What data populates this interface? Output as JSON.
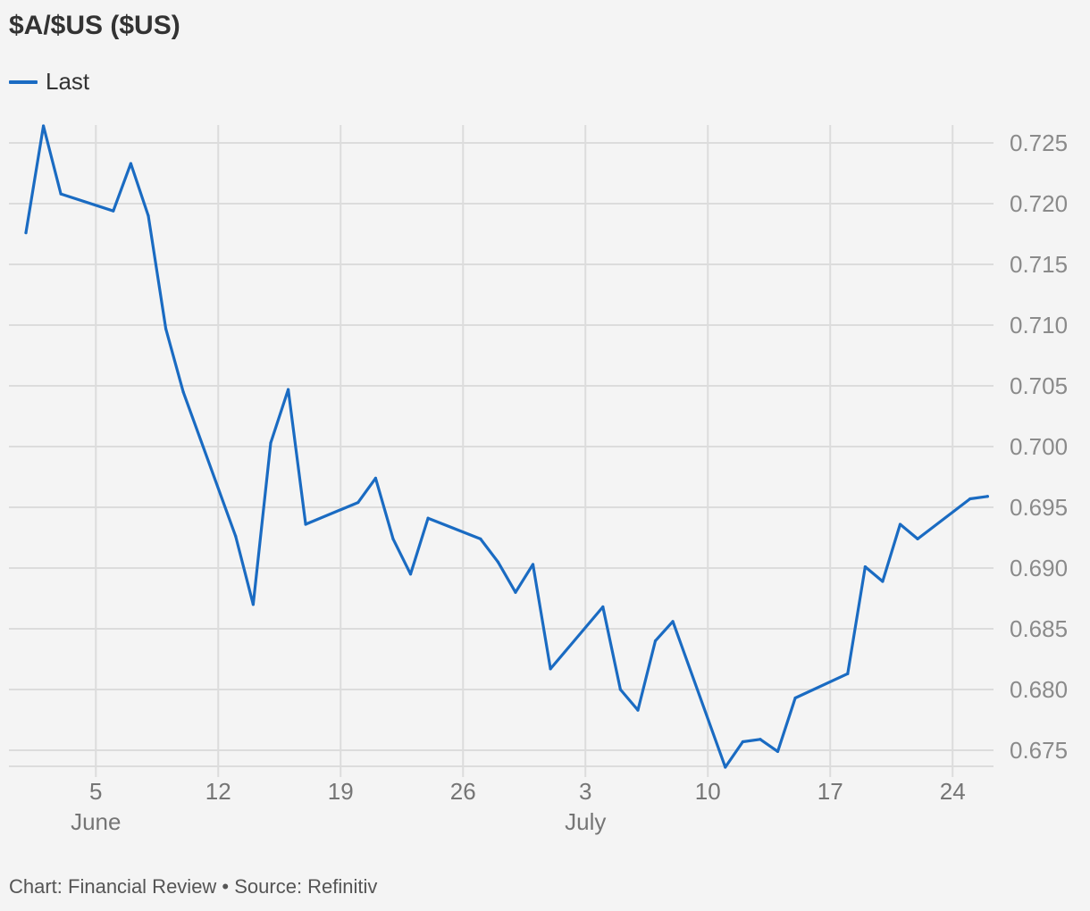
{
  "title": "$A/$US ($US)",
  "legend": {
    "label": "Last",
    "color": "#1a6bc2"
  },
  "credit": "Chart: Financial Review • Source: Refinitiv",
  "chart_data": {
    "type": "line",
    "title": "$A/$US ($US)",
    "ylim": [
      0.673,
      0.726
    ],
    "grid": true,
    "legend_position": "top-left",
    "y_ticks": [
      "0.725",
      "0.720",
      "0.715",
      "0.710",
      "0.705",
      "0.700",
      "0.695",
      "0.690",
      "0.685",
      "0.680",
      "0.675"
    ],
    "x_ticks": [
      {
        "label": "5",
        "sub": "June",
        "day": 4
      },
      {
        "label": "12",
        "sub": "",
        "day": 11
      },
      {
        "label": "19",
        "sub": "",
        "day": 18
      },
      {
        "label": "26",
        "sub": "",
        "day": 25
      },
      {
        "label": "3",
        "sub": "July",
        "day": 32
      },
      {
        "label": "10",
        "sub": "",
        "day": 39
      },
      {
        "label": "17",
        "sub": "",
        "day": 46
      },
      {
        "label": "24",
        "sub": "",
        "day": 53
      }
    ],
    "series": [
      {
        "name": "Last",
        "color": "#1a6bc2",
        "points": [
          [
            0,
            0.7176
          ],
          [
            1,
            0.7264
          ],
          [
            2,
            0.7208
          ],
          [
            5,
            0.7194
          ],
          [
            6,
            0.7233
          ],
          [
            7,
            0.719
          ],
          [
            8,
            0.7097
          ],
          [
            9,
            0.7045
          ],
          [
            12,
            0.6926
          ],
          [
            13,
            0.687
          ],
          [
            14,
            0.7003
          ],
          [
            15,
            0.7047
          ],
          [
            16,
            0.6936
          ],
          [
            19,
            0.6954
          ],
          [
            20,
            0.6974
          ],
          [
            21,
            0.6924
          ],
          [
            22,
            0.6895
          ],
          [
            23,
            0.6941
          ],
          [
            26,
            0.6924
          ],
          [
            27,
            0.6905
          ],
          [
            28,
            0.688
          ],
          [
            29,
            0.6903
          ],
          [
            30,
            0.6817
          ],
          [
            33,
            0.6868
          ],
          [
            34,
            0.68
          ],
          [
            35,
            0.6783
          ],
          [
            36,
            0.684
          ],
          [
            37,
            0.6856
          ],
          [
            40,
            0.6736
          ],
          [
            41,
            0.6757
          ],
          [
            42,
            0.6759
          ],
          [
            43,
            0.6749
          ],
          [
            44,
            0.6793
          ],
          [
            47,
            0.6813
          ],
          [
            48,
            0.6901
          ],
          [
            49,
            0.6889
          ],
          [
            50,
            0.6936
          ],
          [
            51,
            0.6924
          ],
          [
            54,
            0.6957
          ],
          [
            55,
            0.6959
          ]
        ]
      }
    ]
  }
}
